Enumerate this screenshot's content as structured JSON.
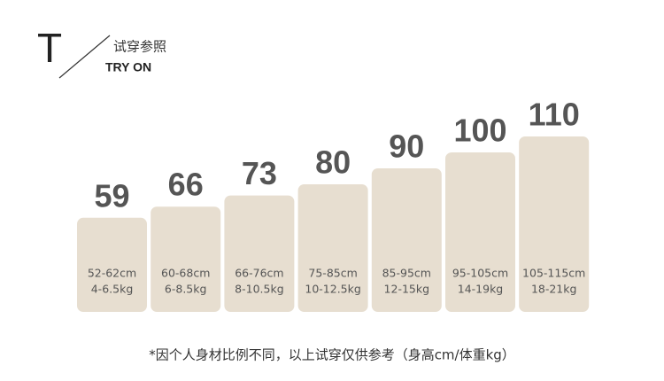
{
  "header": {
    "letter": "T",
    "title_cn": "试穿参照",
    "title_en": "TRY ON"
  },
  "sizes": [
    {
      "size": 59,
      "height": "52-62cm",
      "weight": "4-6.5kg"
    },
    {
      "size": 66,
      "height": "60-68cm",
      "weight": "6-8.5kg"
    },
    {
      "size": 73,
      "height": "66-76cm",
      "weight": "8-10.5kg"
    },
    {
      "size": 80,
      "height": "75-85cm",
      "weight": "10-12.5kg"
    },
    {
      "size": 90,
      "height": "85-95cm",
      "weight": "12-15kg"
    },
    {
      "size": 100,
      "height": "95-105cm",
      "weight": "14-19kg"
    },
    {
      "size": 110,
      "height": "105-115cm",
      "weight": "18-21kg"
    }
  ],
  "footnote": "*因个人身材比例不同，以上试穿仅供参考（身高cm/体重kg）"
}
